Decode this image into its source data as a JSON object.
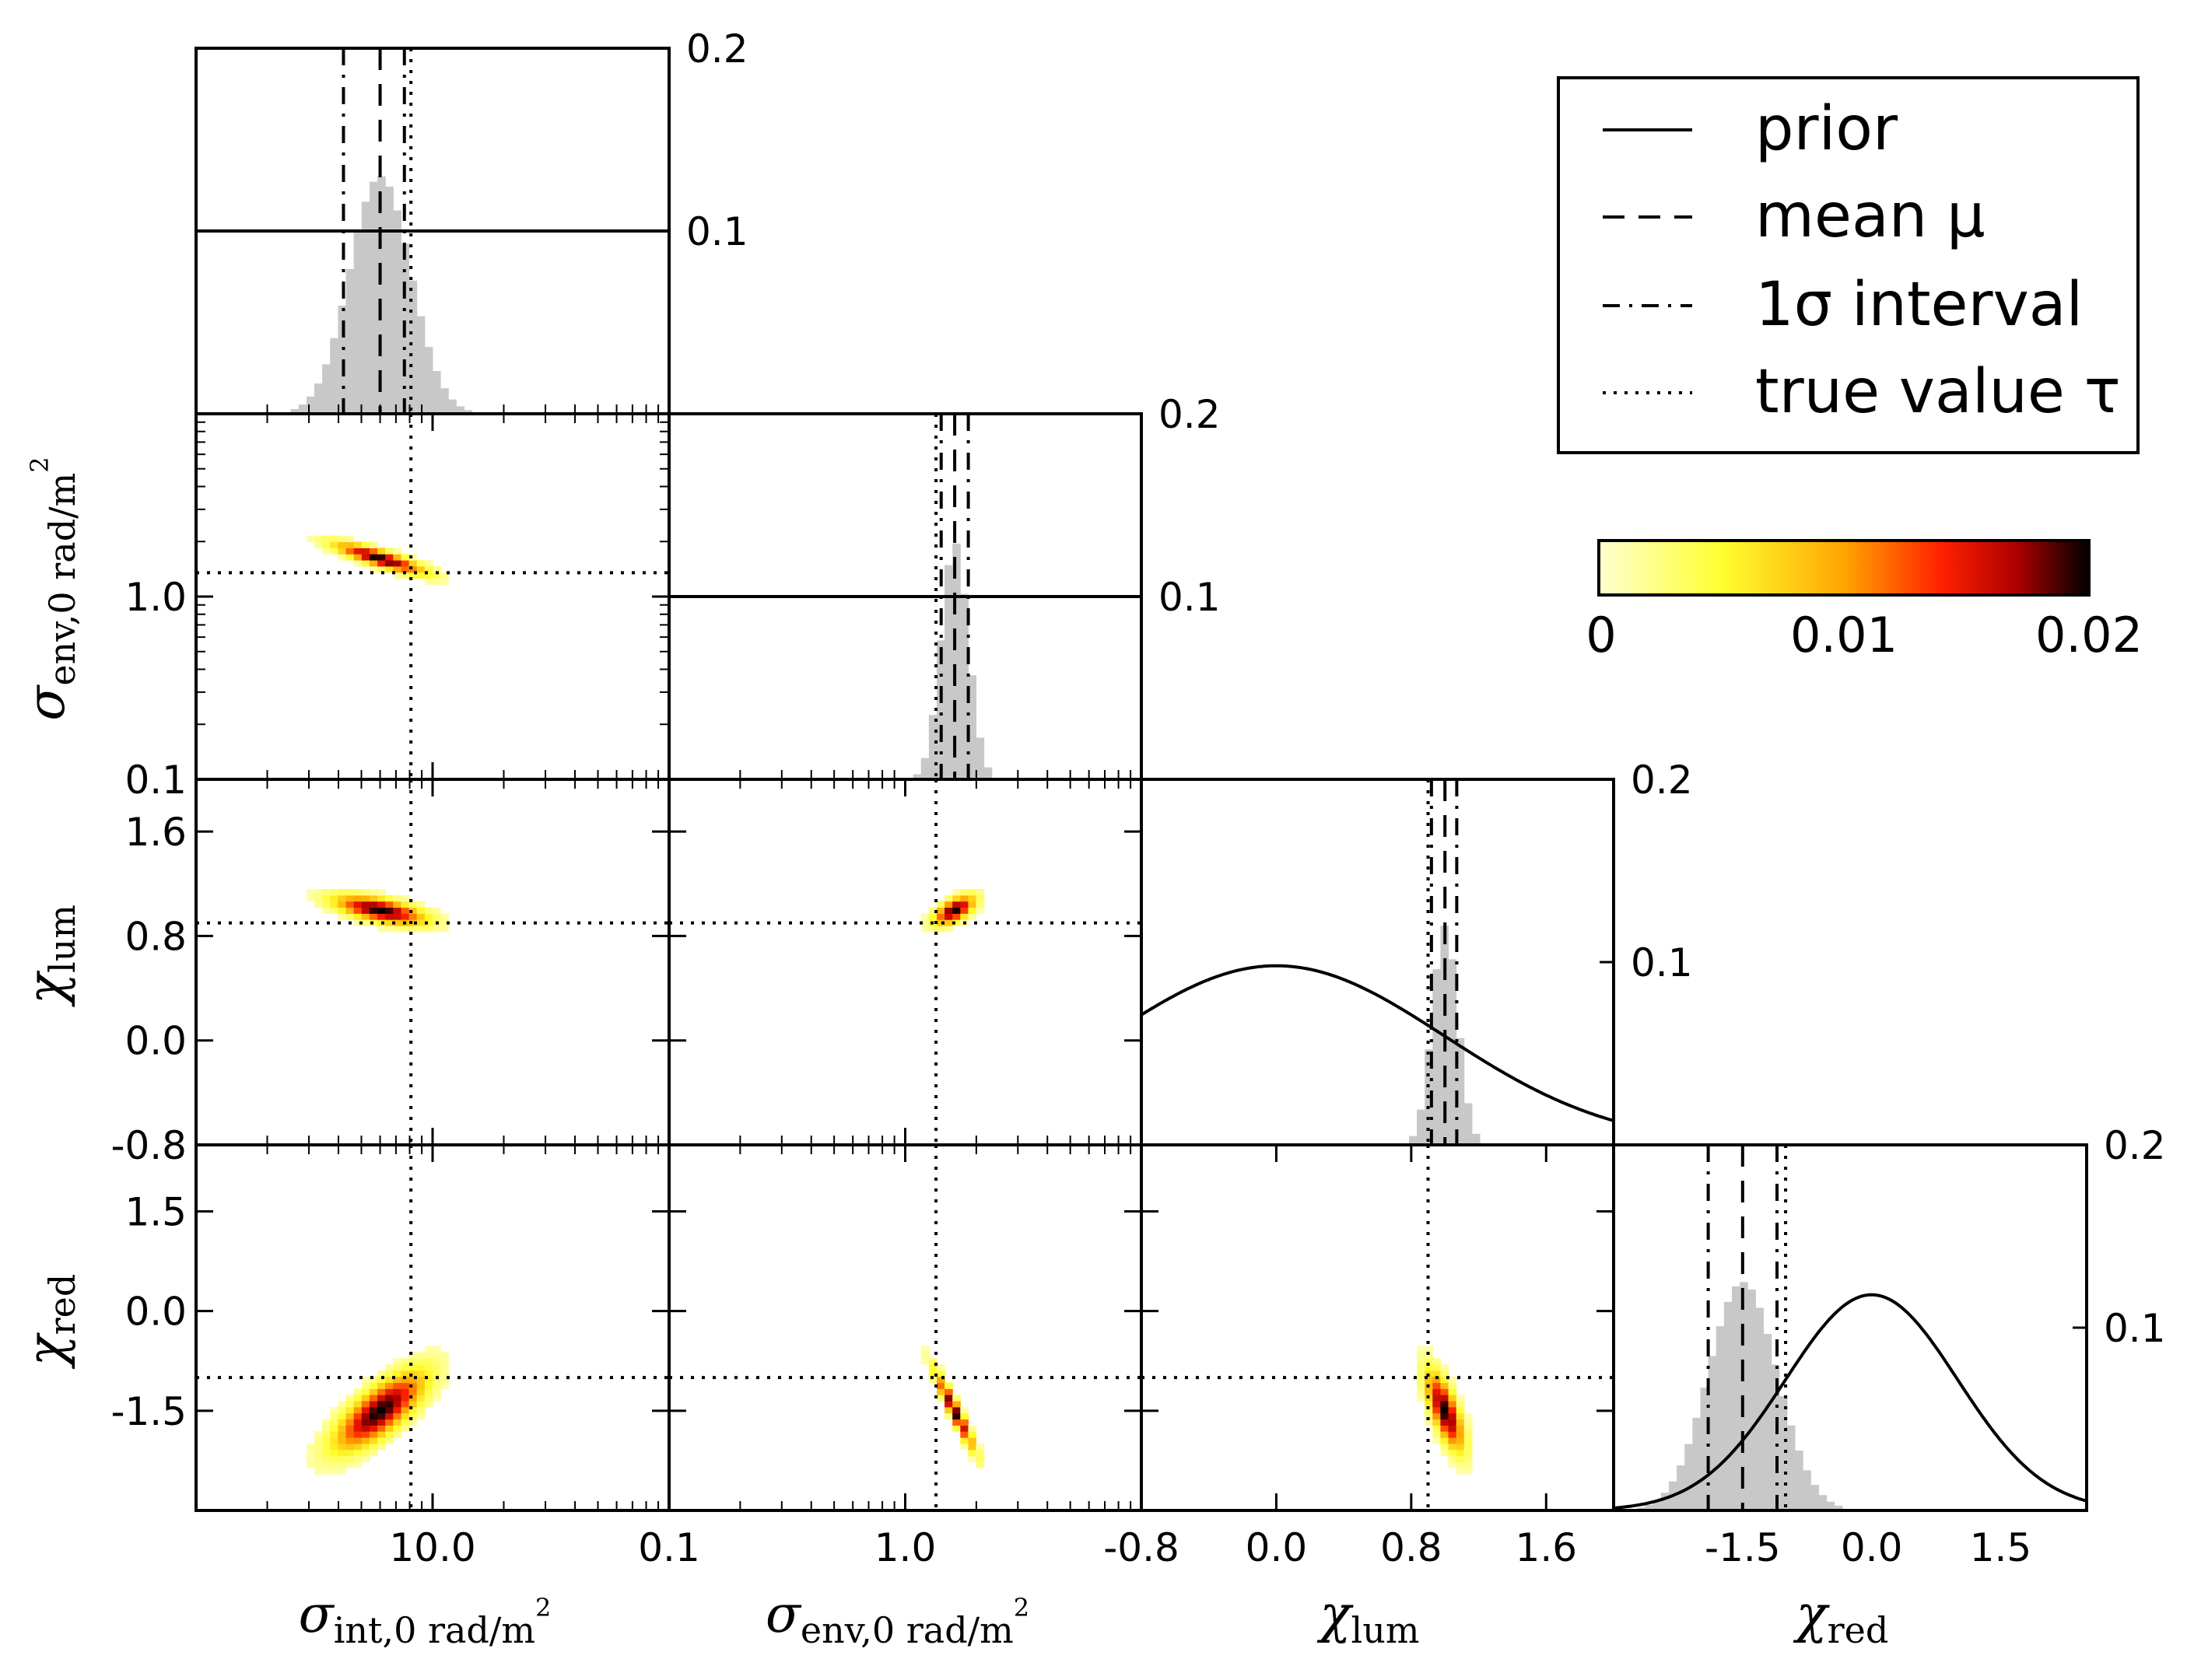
{
  "chart_data": {
    "type": "corner-plot",
    "legend": {
      "entries": [
        {
          "label": "prior",
          "style": "solid"
        },
        {
          "label": "mean μ",
          "style": "dashed"
        },
        {
          "label": "1σ interval",
          "style": "dashdot"
        },
        {
          "label": "true value τ",
          "style": "dotted"
        }
      ]
    },
    "colorbar": {
      "min": 0,
      "max": 0.02,
      "tick_labels": [
        "0",
        "0.01",
        "0.02"
      ],
      "colors": [
        "#ffffd0",
        "#ffff30",
        "#ffa500",
        "#ff2000",
        "#b00000",
        "#000000"
      ]
    },
    "hist_color": "#c8c8c8",
    "parameters": [
      {
        "name": "sigma_int",
        "label_main": "σ",
        "label_sub": "int,0 rad/m",
        "label_sup": "2",
        "scale": "log",
        "range": [
          1,
          100
        ],
        "tick_labels": [
          "10.0"
        ],
        "mean": 6.0,
        "sigma_lo": 4.2,
        "sigma_hi": 7.6,
        "true": 8.1
      },
      {
        "name": "sigma_env",
        "label_main": "σ",
        "label_sub": "env,0 rad/m",
        "label_sup": "2",
        "scale": "log",
        "range": [
          0.1,
          10
        ],
        "tick_labels": [
          "0.1",
          "1.0"
        ],
        "mean": 1.62,
        "sigma_lo": 1.42,
        "sigma_hi": 1.85,
        "true": 1.35
      },
      {
        "name": "chi_lum",
        "label_main": "χ",
        "label_sub": "lum",
        "label_sup": "",
        "scale": "linear",
        "range": [
          -0.8,
          2.0
        ],
        "tick_labels": [
          "-0.8",
          "0.0",
          "0.8",
          "1.6"
        ],
        "mean": 1.0,
        "sigma_lo": 0.92,
        "sigma_hi": 1.07,
        "true": 0.9
      },
      {
        "name": "chi_red",
        "label_main": "χ",
        "label_sub": "red",
        "label_sup": "",
        "scale": "linear",
        "range": [
          -3.0,
          2.5
        ],
        "tick_labels": [
          "-1.5",
          "0.0",
          "1.5"
        ],
        "mean": -1.5,
        "sigma_lo": -1.9,
        "sigma_hi": -1.1,
        "true": -1.0
      }
    ],
    "diag_top_labels": [
      "0.2",
      "0.2",
      "0.2",
      "0.2"
    ],
    "diag_mid_labels": [
      "0.1",
      "0.1",
      "0.1",
      "0.1"
    ],
    "left_axis_labels": {
      "sigma_env": [
        "1.0",
        "0.1"
      ],
      "chi_lum": [
        "1.6",
        "0.8",
        "0.0",
        "-0.8"
      ],
      "chi_red": [
        "1.5",
        "0.0",
        "-1.5"
      ]
    },
    "bottom_axis_labels": {
      "sigma_int": [
        "10.0"
      ],
      "sigma_env": [
        "0.1",
        "1.0"
      ],
      "chi_lum": [
        "-0.8",
        "0.0",
        "0.8",
        "1.6"
      ],
      "chi_red": [
        "-1.5",
        "0.0",
        "1.5"
      ]
    },
    "priors": {
      "sigma_int": {
        "type": "flat",
        "density": 0.1
      },
      "sigma_env": {
        "type": "flat",
        "density": 0.1
      },
      "chi_lum": {
        "type": "gaussian",
        "mean": 0.0,
        "sd": 1.0,
        "peak": 0.098
      },
      "chi_red": {
        "type": "gaussian",
        "mean": 0.0,
        "sd": 1.0,
        "peak": 0.118
      }
    },
    "correlations": {
      "1-0": -0.85,
      "2-0": -0.6,
      "2-1": 0.6,
      "3-0": 0.75,
      "3-1": -0.95,
      "3-2": -0.7
    }
  }
}
